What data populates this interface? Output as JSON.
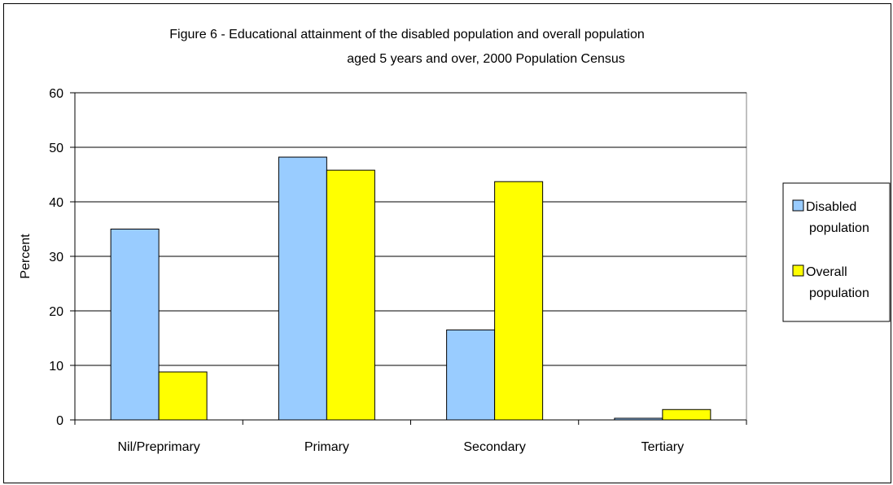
{
  "chart_data": {
    "type": "bar",
    "title": [
      "Figure 6 - Educational attainment of the disabled population and overall population",
      "aged 5 years and over, 2000 Population Census"
    ],
    "xlabel": "",
    "ylabel": "Percent",
    "ylim": [
      0,
      60
    ],
    "yticks": [
      0,
      10,
      20,
      30,
      40,
      50,
      60
    ],
    "grid": true,
    "legend_position": "right",
    "categories": [
      "Nil/Preprimary",
      "Primary",
      "Secondary",
      "Tertiary"
    ],
    "series": [
      {
        "name": "Disabled population",
        "legend_lines": [
          "Disabled",
          "population"
        ],
        "color": "#99CCFF",
        "values": [
          35.0,
          48.2,
          16.5,
          0.3
        ]
      },
      {
        "name": "Overall population",
        "legend_lines": [
          "Overall",
          "population"
        ],
        "color": "#FFFF00",
        "values": [
          8.8,
          45.8,
          43.7,
          1.9
        ]
      }
    ]
  }
}
